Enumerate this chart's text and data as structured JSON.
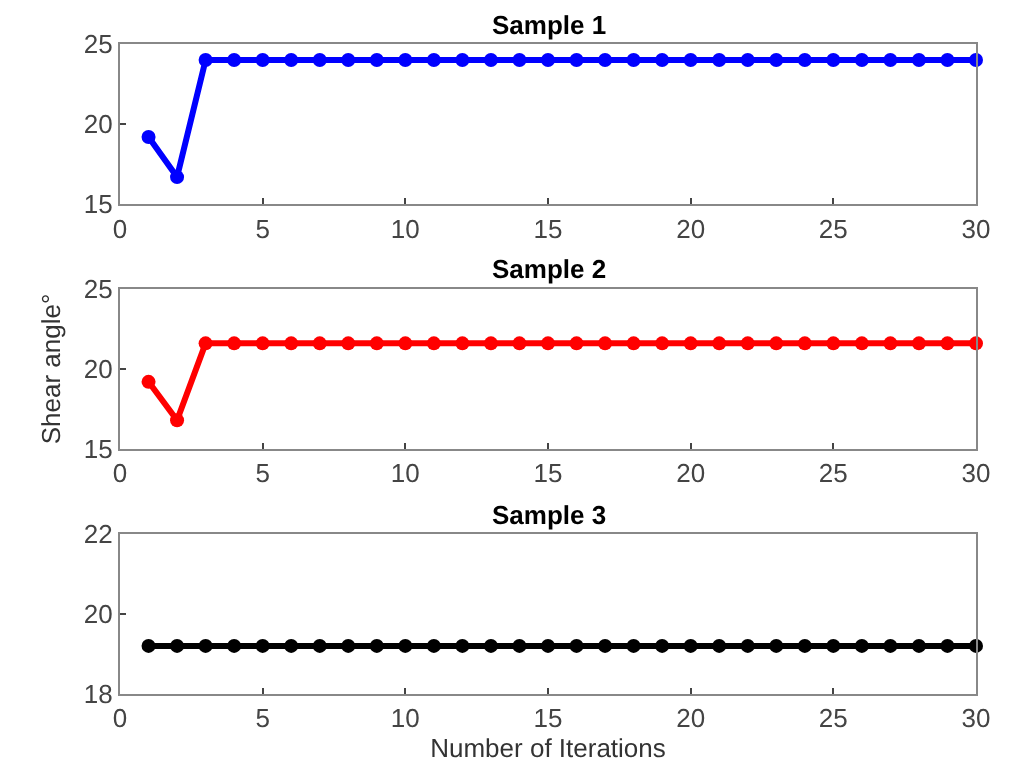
{
  "chart_data": [
    {
      "type": "line",
      "title": "Sample 1",
      "x": [
        1,
        2,
        3,
        4,
        5,
        6,
        7,
        8,
        9,
        10,
        11,
        12,
        13,
        14,
        15,
        16,
        17,
        18,
        19,
        20,
        21,
        22,
        23,
        24,
        25,
        26,
        27,
        28,
        29,
        30
      ],
      "series": [
        {
          "color": "#0000ff",
          "values": [
            19.2,
            16.7,
            24,
            24,
            24,
            24,
            24,
            24,
            24,
            24,
            24,
            24,
            24,
            24,
            24,
            24,
            24,
            24,
            24,
            24,
            24,
            24,
            24,
            24,
            24,
            24,
            24,
            24,
            24,
            24
          ]
        }
      ],
      "xlim": [
        0,
        30
      ],
      "xticks": [
        0,
        5,
        10,
        15,
        20,
        25,
        30
      ],
      "ylim": [
        15,
        25
      ],
      "yticks": [
        15,
        20,
        25
      ],
      "marker": "circle"
    },
    {
      "type": "line",
      "title": "Sample 2",
      "ylabel": "Shear angle°",
      "x": [
        1,
        2,
        3,
        4,
        5,
        6,
        7,
        8,
        9,
        10,
        11,
        12,
        13,
        14,
        15,
        16,
        17,
        18,
        19,
        20,
        21,
        22,
        23,
        24,
        25,
        26,
        27,
        28,
        29,
        30
      ],
      "series": [
        {
          "color": "#ff0000",
          "values": [
            19.2,
            16.8,
            21.6,
            21.6,
            21.6,
            21.6,
            21.6,
            21.6,
            21.6,
            21.6,
            21.6,
            21.6,
            21.6,
            21.6,
            21.6,
            21.6,
            21.6,
            21.6,
            21.6,
            21.6,
            21.6,
            21.6,
            21.6,
            21.6,
            21.6,
            21.6,
            21.6,
            21.6,
            21.6,
            21.6
          ]
        }
      ],
      "xlim": [
        0,
        30
      ],
      "xticks": [
        0,
        5,
        10,
        15,
        20,
        25,
        30
      ],
      "ylim": [
        15,
        25
      ],
      "yticks": [
        15,
        20,
        25
      ],
      "marker": "circle"
    },
    {
      "type": "line",
      "title": "Sample 3",
      "xlabel": "Number of Iterations",
      "x": [
        1,
        2,
        3,
        4,
        5,
        6,
        7,
        8,
        9,
        10,
        11,
        12,
        13,
        14,
        15,
        16,
        17,
        18,
        19,
        20,
        21,
        22,
        23,
        24,
        25,
        26,
        27,
        28,
        29,
        30
      ],
      "series": [
        {
          "color": "#000000",
          "values": [
            19.2,
            19.2,
            19.2,
            19.2,
            19.2,
            19.2,
            19.2,
            19.2,
            19.2,
            19.2,
            19.2,
            19.2,
            19.2,
            19.2,
            19.2,
            19.2,
            19.2,
            19.2,
            19.2,
            19.2,
            19.2,
            19.2,
            19.2,
            19.2,
            19.2,
            19.2,
            19.2,
            19.2,
            19.2,
            19.2
          ]
        }
      ],
      "xlim": [
        0,
        30
      ],
      "xticks": [
        0,
        5,
        10,
        15,
        20,
        25,
        30
      ],
      "ylim": [
        18,
        22
      ],
      "yticks": [
        18,
        20,
        22
      ],
      "marker": "circle"
    }
  ]
}
